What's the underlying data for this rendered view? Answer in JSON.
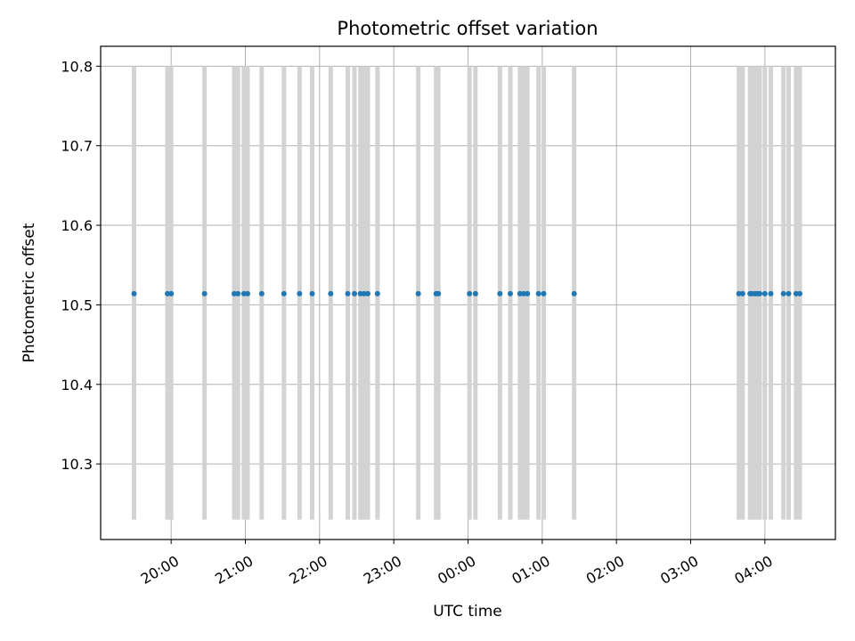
{
  "chart_data": {
    "type": "scatter",
    "title": "Photometric offset variation",
    "xlabel": "UTC time",
    "ylabel": "Photometric offset",
    "x_axis": {
      "kind": "time",
      "tick_labels": [
        "20:00",
        "21:00",
        "22:00",
        "23:00",
        "00:00",
        "01:00",
        "02:00",
        "03:00",
        "04:00"
      ],
      "tick_hours": [
        20,
        21,
        22,
        23,
        24,
        25,
        26,
        27,
        28
      ],
      "range_hours": [
        19.05,
        28.95
      ],
      "tick_label_rotation_deg": 30
    },
    "y_axis": {
      "range": [
        10.205,
        10.825
      ],
      "ticks": [
        10.3,
        10.4,
        10.5,
        10.6,
        10.7,
        10.8
      ],
      "tick_labels": [
        "10.3",
        "10.4",
        "10.5",
        "10.6",
        "10.7",
        "10.8"
      ]
    },
    "grid": true,
    "vertical_bands": {
      "color": "#d3d3d3",
      "y_range": [
        10.23,
        10.8
      ],
      "x_hours": [
        19.5,
        19.95,
        20.0,
        20.45,
        20.85,
        20.9,
        20.98,
        21.03,
        21.22,
        21.52,
        21.73,
        21.9,
        22.15,
        22.38,
        22.47,
        22.55,
        22.6,
        22.65,
        22.78,
        23.33,
        23.57,
        23.6,
        24.02,
        24.1,
        24.43,
        24.57,
        24.7,
        24.75,
        24.8,
        24.95,
        25.02,
        25.43,
        27.65,
        27.7,
        27.8,
        27.83,
        27.87,
        27.9,
        27.93,
        28.0,
        28.08,
        28.25,
        28.32,
        28.42,
        28.47
      ]
    },
    "series": [
      {
        "color": "#1f77b4",
        "marker": "point",
        "y": 10.514,
        "x_hours": [
          19.5,
          19.95,
          20.0,
          20.45,
          20.85,
          20.9,
          20.98,
          21.03,
          21.22,
          21.52,
          21.73,
          21.9,
          22.15,
          22.38,
          22.47,
          22.55,
          22.6,
          22.65,
          22.78,
          23.33,
          23.57,
          23.6,
          24.02,
          24.1,
          24.43,
          24.57,
          24.7,
          24.75,
          24.8,
          24.95,
          25.02,
          25.43,
          27.65,
          27.7,
          27.8,
          27.83,
          27.87,
          27.9,
          27.93,
          28.0,
          28.08,
          28.25,
          28.32,
          28.42,
          28.47
        ]
      }
    ]
  }
}
